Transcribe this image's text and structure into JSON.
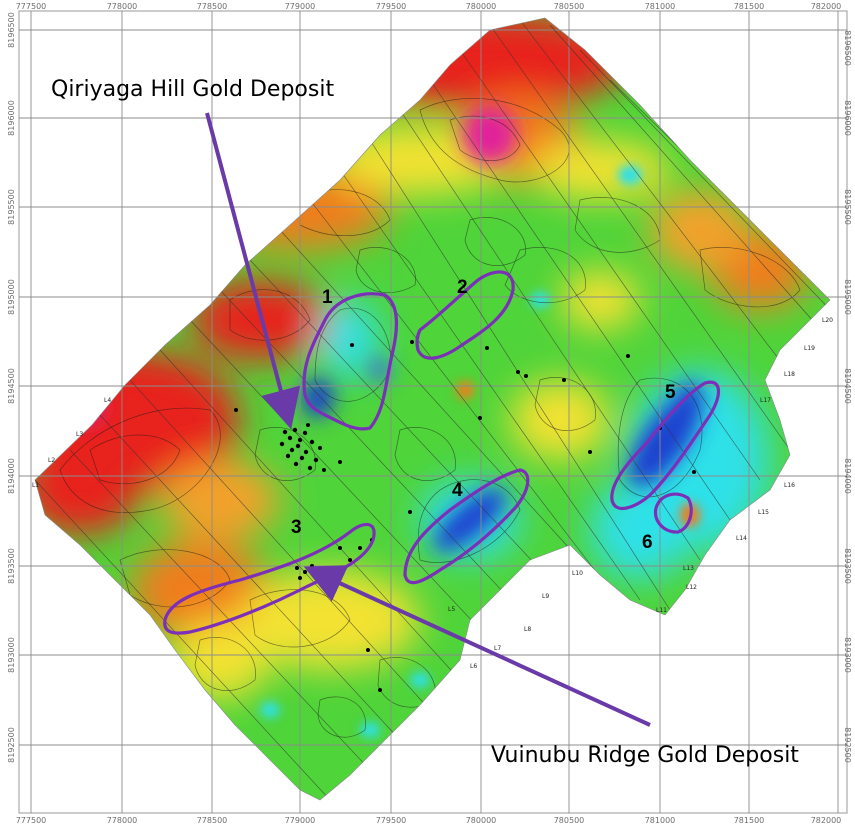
{
  "x_ticks": [
    "777500",
    "778000",
    "778500",
    "779000",
    "779500",
    "780000",
    "780500",
    "781000",
    "781500",
    "782000"
  ],
  "y_ticks": [
    "8196500",
    "8196000",
    "8195500",
    "8195000",
    "8194500",
    "8194000",
    "8193500",
    "8193000",
    "8192500"
  ],
  "annotations": {
    "qiriyaga": "Qiriyaga Hill Gold Deposit",
    "vuinubu": "Vuinubu Ridge Gold Deposit"
  },
  "targets": [
    "1",
    "2",
    "3",
    "4",
    "5",
    "6"
  ],
  "line_labels": [
    "L1",
    "L2",
    "L3",
    "L4",
    "L5",
    "L6",
    "L7",
    "L8",
    "L9",
    "L10",
    "L11",
    "L12",
    "L13",
    "L14",
    "L15",
    "L16",
    "L17",
    "L18",
    "L19",
    "L20"
  ],
  "colors": {
    "high": "#e8231f",
    "mid_high": "#f07d1c",
    "mid": "#f3e233",
    "mid_low": "#45d23b",
    "low": "#2fe0e8",
    "very_low": "#1f3fcf",
    "peak": "#e0209a",
    "outline": "#7c2fb8",
    "arrow": "#6a3aa8"
  }
}
